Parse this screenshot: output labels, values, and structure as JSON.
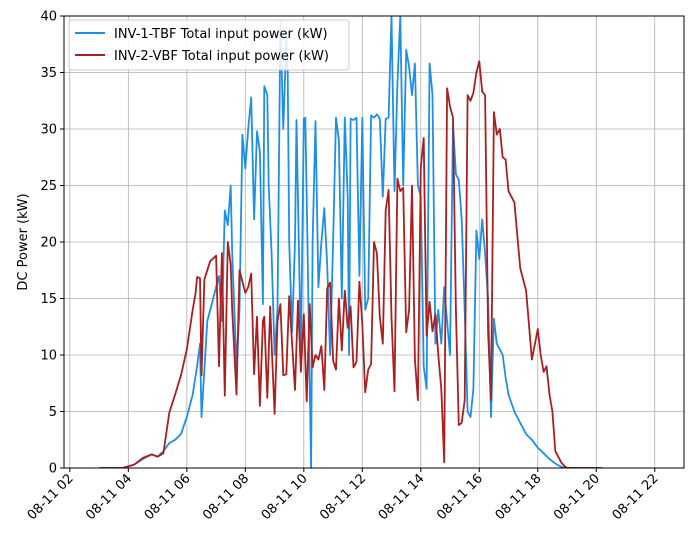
{
  "chart_data": {
    "type": "line",
    "ylabel": "DC Power (kW)",
    "xlabel": "",
    "ylim": [
      0,
      40
    ],
    "xlim_hours": [
      1.8,
      23.0
    ],
    "grid": true,
    "legend": "top-left",
    "yticks": [
      0,
      5,
      10,
      15,
      20,
      25,
      30,
      35,
      40
    ],
    "xticks": [
      {
        "hour": 2,
        "label": "08-11 02"
      },
      {
        "hour": 4,
        "label": "08-11 04"
      },
      {
        "hour": 6,
        "label": "08-11 06"
      },
      {
        "hour": 8,
        "label": "08-11 08"
      },
      {
        "hour": 10,
        "label": "08-11 10"
      },
      {
        "hour": 12,
        "label": "08-11 12"
      },
      {
        "hour": 14,
        "label": "08-11 14"
      },
      {
        "hour": 16,
        "label": "08-11 16"
      },
      {
        "hour": 18,
        "label": "08-11 18"
      },
      {
        "hour": 20,
        "label": "08-11 20"
      },
      {
        "hour": 22,
        "label": "08-11 22"
      }
    ],
    "series": [
      {
        "name": "INV-1-TBF Total input power (kW)",
        "color": "#1f8fe6",
        "x": [
          3.0,
          3.8,
          4.2,
          4.5,
          4.8,
          5.0,
          5.2,
          5.4,
          5.6,
          5.8,
          6.0,
          6.2,
          6.35,
          6.45,
          6.5,
          6.7,
          6.9,
          7.1,
          7.2,
          7.3,
          7.4,
          7.5,
          7.55,
          7.7,
          7.8,
          7.9,
          8.0,
          8.1,
          8.2,
          8.3,
          8.4,
          8.5,
          8.6,
          8.65,
          8.75,
          8.8,
          8.9,
          9.0,
          9.1,
          9.2,
          9.3,
          9.4,
          9.45,
          9.5,
          9.6,
          9.7,
          9.75,
          9.9,
          10.0,
          10.05,
          10.1,
          10.25,
          10.3,
          10.4,
          10.5,
          10.6,
          10.7,
          10.8,
          10.9,
          11.0,
          11.1,
          11.2,
          11.3,
          11.4,
          11.5,
          11.55,
          11.6,
          11.7,
          11.8,
          11.9,
          12.0,
          12.1,
          12.2,
          12.3,
          12.4,
          12.5,
          12.6,
          12.7,
          12.8,
          12.9,
          13.0,
          13.1,
          13.2,
          13.3,
          13.4,
          13.5,
          13.6,
          13.7,
          13.8,
          13.9,
          14.0,
          14.1,
          14.2,
          14.3,
          14.4,
          14.5,
          14.6,
          14.7,
          14.8,
          14.9,
          15.0,
          15.1,
          15.2,
          15.3,
          15.4,
          15.5,
          15.6,
          15.7,
          15.8,
          15.9,
          16.0,
          16.1,
          16.2,
          16.3,
          16.4,
          16.5,
          16.6,
          16.7,
          16.8,
          16.9,
          17.0,
          17.2,
          17.4,
          17.6,
          17.8,
          18.0,
          18.2,
          18.4,
          18.6,
          18.8,
          19.0,
          19.2,
          19.4,
          19.6,
          19.8,
          20.0,
          20.2
        ],
        "values": [
          0.0,
          0.0,
          0.3,
          0.8,
          1.2,
          1.0,
          1.5,
          2.2,
          2.5,
          3.0,
          4.5,
          6.5,
          9.0,
          11.0,
          4.5,
          13.0,
          15.0,
          17.0,
          13.0,
          22.8,
          21.5,
          25.0,
          19.0,
          9.0,
          14.0,
          29.5,
          26.5,
          30.0,
          32.8,
          22.0,
          29.8,
          28.0,
          14.5,
          33.8,
          33.0,
          25.0,
          19.0,
          10.0,
          14.0,
          39.5,
          30.0,
          38.0,
          35.0,
          20.0,
          12.0,
          20.0,
          30.8,
          10.0,
          30.9,
          31.0,
          24.0,
          0.0,
          20.0,
          30.7,
          16.0,
          20.0,
          23.0,
          18.0,
          10.0,
          20.0,
          31.0,
          29.0,
          15.0,
          31.0,
          24.0,
          10.0,
          30.9,
          30.8,
          31.0,
          17.0,
          31.0,
          14.0,
          15.0,
          31.2,
          31.0,
          31.3,
          30.9,
          24.0,
          30.9,
          31.0,
          40.0,
          24.5,
          34.0,
          40.0,
          25.0,
          37.0,
          35.5,
          33.0,
          35.8,
          25.0,
          24.0,
          9.0,
          7.0,
          35.8,
          33.0,
          11.0,
          14.0,
          11.0,
          16.0,
          13.0,
          10.0,
          30.4,
          26.0,
          25.5,
          22.0,
          14.0,
          5.0,
          4.5,
          7.0,
          21.0,
          18.5,
          22.0,
          19.0,
          15.0,
          4.5,
          13.2,
          11.0,
          10.5,
          10.0,
          8.0,
          6.5,
          5.0,
          4.0,
          3.0,
          2.5,
          1.8,
          1.3,
          0.8,
          0.4,
          0.1,
          0.0,
          0.0,
          0.0,
          0.0,
          0.0,
          0.0,
          0.0
        ]
      },
      {
        "name": "INV-2-VBF Total input power (kW)",
        "color": "#aa1f1f",
        "x": [
          3.0,
          3.8,
          4.2,
          4.5,
          4.8,
          5.0,
          5.2,
          5.4,
          5.6,
          5.8,
          6.0,
          6.2,
          6.3,
          6.35,
          6.45,
          6.5,
          6.6,
          6.8,
          7.0,
          7.1,
          7.2,
          7.3,
          7.4,
          7.5,
          7.55,
          7.7,
          7.8,
          7.9,
          8.0,
          8.1,
          8.2,
          8.3,
          8.4,
          8.5,
          8.6,
          8.65,
          8.75,
          8.85,
          8.9,
          9.0,
          9.1,
          9.2,
          9.3,
          9.4,
          9.5,
          9.6,
          9.7,
          9.8,
          9.9,
          10.0,
          10.1,
          10.2,
          10.3,
          10.4,
          10.5,
          10.6,
          10.7,
          10.8,
          10.9,
          11.0,
          11.1,
          11.2,
          11.3,
          11.4,
          11.5,
          11.6,
          11.7,
          11.8,
          11.9,
          12.0,
          12.1,
          12.2,
          12.3,
          12.4,
          12.5,
          12.6,
          12.7,
          12.8,
          12.9,
          13.0,
          13.1,
          13.2,
          13.3,
          13.4,
          13.5,
          13.6,
          13.7,
          13.8,
          13.9,
          14.0,
          14.1,
          14.2,
          14.3,
          14.4,
          14.5,
          14.6,
          14.7,
          14.8,
          14.9,
          15.0,
          15.1,
          15.2,
          15.3,
          15.4,
          15.5,
          15.6,
          15.7,
          15.8,
          15.9,
          16.0,
          16.1,
          16.2,
          16.3,
          16.4,
          16.5,
          16.6,
          16.7,
          16.8,
          16.9,
          17.0,
          17.2,
          17.4,
          17.6,
          17.8,
          18.0,
          18.1,
          18.2,
          18.3,
          18.4,
          18.5,
          18.6,
          18.8,
          18.9,
          19.0,
          19.2,
          19.4,
          19.6,
          19.8,
          20.0,
          20.2
        ],
        "values": [
          0.0,
          0.0,
          0.3,
          0.9,
          1.2,
          1.0,
          1.3,
          4.9,
          6.5,
          8.2,
          10.5,
          14.0,
          15.5,
          16.9,
          16.8,
          8.2,
          16.7,
          18.3,
          18.8,
          9.0,
          19.0,
          6.4,
          20.0,
          18.0,
          14.0,
          6.5,
          17.5,
          16.5,
          15.5,
          16.0,
          17.2,
          8.3,
          13.4,
          5.5,
          13.0,
          13.4,
          6.2,
          14.3,
          11.0,
          4.8,
          13.0,
          14.5,
          8.2,
          8.3,
          15.2,
          11.0,
          6.9,
          14.8,
          8.5,
          13.6,
          5.9,
          14.5,
          8.9,
          10.0,
          9.6,
          10.8,
          6.9,
          15.9,
          16.4,
          9.5,
          8.7,
          15.0,
          10.4,
          15.7,
          12.4,
          14.3,
          8.9,
          9.4,
          16.5,
          12.8,
          6.7,
          8.7,
          9.2,
          20.0,
          19.0,
          13.4,
          11.0,
          22.8,
          24.6,
          13.3,
          6.8,
          25.6,
          24.5,
          24.8,
          12.0,
          14.0,
          25.0,
          9.6,
          6.0,
          26.6,
          29.2,
          11.7,
          14.7,
          12.1,
          13.6,
          10.0,
          7.0,
          0.5,
          33.6,
          32.0,
          31.0,
          14.0,
          3.8,
          4.0,
          6.0,
          33.0,
          32.5,
          33.2,
          35.0,
          36.0,
          33.3,
          33.0,
          12.0,
          6.0,
          31.5,
          29.5,
          30.0,
          27.5,
          27.3,
          24.5,
          23.5,
          17.7,
          15.7,
          9.6,
          12.3,
          10.0,
          8.5,
          9.0,
          6.5,
          5.0,
          1.5,
          0.5,
          0.2,
          0.0,
          0.0,
          0.0,
          0.0,
          0.0,
          0.0,
          0.0
        ]
      }
    ]
  }
}
